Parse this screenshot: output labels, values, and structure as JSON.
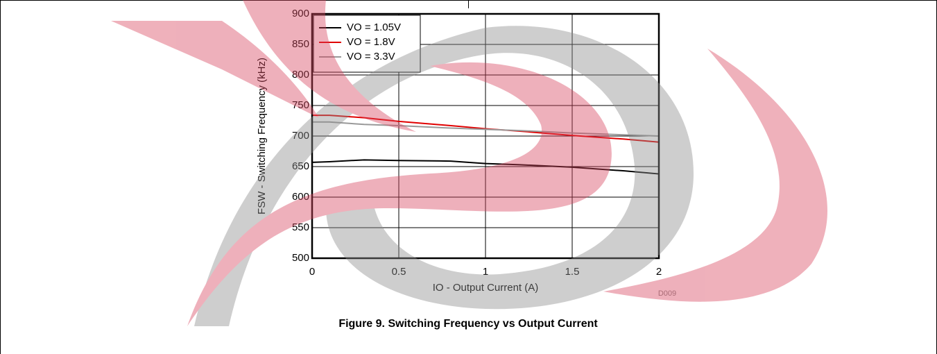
{
  "chart_data": {
    "type": "line",
    "caption": "Figure 9. Switching Frequency vs Output Current",
    "annotation": "D009",
    "x_label": "IO - Output Current (A)",
    "y_label": "FSW - Switching Frequency (kHz)",
    "x": [
      0,
      0.1,
      0.3,
      0.5,
      0.8,
      1.0,
      1.2,
      1.5,
      1.8,
      2.0
    ],
    "series": [
      {
        "name": "VO = 1.05V",
        "color": "#000000",
        "values": [
          657,
          658,
          661,
          660,
          659,
          655,
          653,
          649,
          643,
          638
        ]
      },
      {
        "name": "VO = 1.8V",
        "color": "#e00000",
        "values": [
          734,
          734,
          730,
          724,
          717,
          712,
          708,
          701,
          695,
          690
        ]
      },
      {
        "name": "VO = 3.3V",
        "color": "#999999",
        "values": [
          723,
          723,
          719,
          717,
          713,
          711,
          709,
          705,
          702,
          700
        ]
      }
    ],
    "xlim": [
      0,
      2
    ],
    "xticks": [
      0,
      0.5,
      1,
      1.5,
      2
    ],
    "ylim": [
      500,
      900
    ],
    "yticks": [
      500,
      550,
      600,
      650,
      700,
      750,
      800,
      850,
      900
    ],
    "grid": true,
    "legend": "top-left"
  }
}
